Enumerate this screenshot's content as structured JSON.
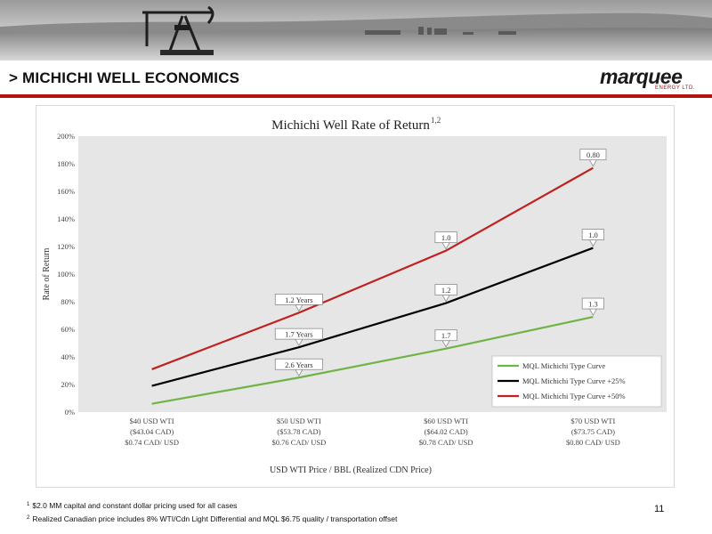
{
  "slide": {
    "title": "> MICHICHI WELL ECONOMICS",
    "page_number": "11",
    "logo": {
      "word": "marquee",
      "sub": "ENERGY LTD."
    }
  },
  "footnotes": [
    {
      "mark": "1",
      "text": "$2.0 MM capital and constant dollar pricing used for all cases"
    },
    {
      "mark": "2",
      "text": "Realized Canadian price includes 8% WTI/Cdn Light Differential and MQL $6.75 quality / transportation offset"
    }
  ],
  "chart_data": {
    "type": "line",
    "title": "Michichi Well Rate of Return",
    "title_superscript": "1,2",
    "xlabel": "USD WTI Price / BBL (Realized CDN Price)",
    "ylabel": "Rate of Return",
    "ylim": [
      0,
      200
    ],
    "y_ticks": [
      "0%",
      "20%",
      "40%",
      "60%",
      "80%",
      "100%",
      "120%",
      "140%",
      "160%",
      "180%",
      "200%"
    ],
    "grid": false,
    "legend_position": "bottom-right",
    "categories": [
      [
        "$40 USD WTI",
        "($43.04 CAD)",
        "$0.74 CAD/ USD"
      ],
      [
        "$50 USD WTI",
        "($53.78 CAD)",
        "$0.76 CAD/ USD"
      ],
      [
        "$60 USD WTI",
        "($64.02 CAD)",
        "$0.78 CAD/ USD"
      ],
      [
        "$70 USD WTI",
        "($73.75 CAD)",
        "$0.80 CAD/ USD"
      ]
    ],
    "series": [
      {
        "name": "MQL Michichi Type Curve",
        "color": "#70b347",
        "values": [
          6,
          25,
          46,
          69
        ],
        "labels": [
          null,
          "2.6 Years",
          "1.7",
          "1.3"
        ]
      },
      {
        "name": "MQL Michichi Type Curve +25%",
        "color": "#000000",
        "values": [
          19,
          47,
          79,
          119
        ],
        "labels": [
          null,
          "1.7 Years",
          "1.2",
          "1.0"
        ]
      },
      {
        "name": "MQL Michichi Type Curve +50%",
        "color": "#c0211f",
        "values": [
          31,
          72,
          117,
          177
        ],
        "labels": [
          null,
          "1.2 Years",
          "1.0",
          "0.80"
        ]
      }
    ]
  }
}
